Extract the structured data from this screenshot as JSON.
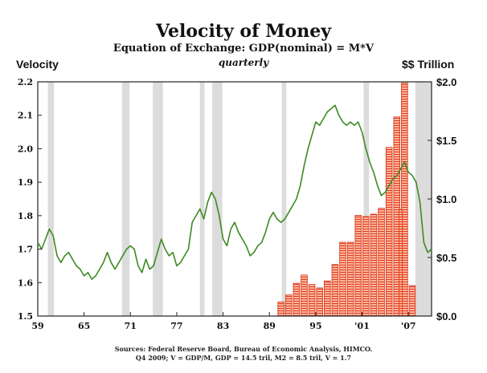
{
  "chart_data": {
    "type": "bar+line",
    "title": "Velocity of Money",
    "subtitle": "Equation of Exchange: GDP(nominal) = M*V",
    "frequency": "quarterly",
    "left_axis": {
      "label": "Velocity",
      "ylim": [
        1.5,
        2.2
      ],
      "ticks": [
        "1.5",
        "1.6",
        "1.7",
        "1.8",
        "1.9",
        "2.0",
        "2.1",
        "2.2"
      ],
      "tick_values": [
        1.5,
        1.6,
        1.7,
        1.8,
        1.9,
        2.0,
        2.1,
        2.2
      ]
    },
    "right_axis": {
      "label": "$$ Trillion",
      "ylim": [
        0,
        2.0
      ],
      "ticks": [
        "$0.0",
        "$0.5",
        "$1.0",
        "$1.5",
        "$2.0"
      ],
      "tick_values": [
        0,
        0.5,
        1.0,
        1.5,
        2.0
      ]
    },
    "x_axis": {
      "xlim": [
        1959,
        2010
      ],
      "ticks": [
        "59",
        "65",
        "71",
        "77",
        "83",
        "89",
        "95",
        "'01",
        "'07"
      ],
      "tick_values": [
        1959,
        1965,
        1971,
        1977,
        1983,
        1989,
        1995,
        2001,
        2007
      ]
    },
    "recessions": [
      [
        1960.3,
        1961.1
      ],
      [
        1969.9,
        1970.9
      ],
      [
        1973.9,
        1975.2
      ],
      [
        1980.0,
        1980.6
      ],
      [
        1981.6,
        1982.9
      ],
      [
        1990.6,
        1991.2
      ],
      [
        2001.2,
        2001.9
      ],
      [
        2007.9,
        2010.0
      ]
    ],
    "series": [
      {
        "name": "Velocity",
        "type": "line",
        "axis": "left",
        "color": "#3d8a22",
        "points": [
          [
            1959.0,
            1.72
          ],
          [
            1959.5,
            1.7
          ],
          [
            1960.0,
            1.73
          ],
          [
            1960.5,
            1.76
          ],
          [
            1961.0,
            1.74
          ],
          [
            1961.5,
            1.68
          ],
          [
            1962.0,
            1.66
          ],
          [
            1962.5,
            1.68
          ],
          [
            1963.0,
            1.69
          ],
          [
            1963.5,
            1.67
          ],
          [
            1964.0,
            1.65
          ],
          [
            1964.5,
            1.64
          ],
          [
            1965.0,
            1.62
          ],
          [
            1965.5,
            1.63
          ],
          [
            1966.0,
            1.61
          ],
          [
            1966.5,
            1.62
          ],
          [
            1967.0,
            1.64
          ],
          [
            1967.5,
            1.66
          ],
          [
            1968.0,
            1.69
          ],
          [
            1968.5,
            1.66
          ],
          [
            1969.0,
            1.64
          ],
          [
            1969.5,
            1.66
          ],
          [
            1970.0,
            1.68
          ],
          [
            1970.5,
            1.7
          ],
          [
            1971.0,
            1.71
          ],
          [
            1971.5,
            1.7
          ],
          [
            1972.0,
            1.65
          ],
          [
            1972.5,
            1.63
          ],
          [
            1973.0,
            1.67
          ],
          [
            1973.5,
            1.64
          ],
          [
            1974.0,
            1.65
          ],
          [
            1974.5,
            1.69
          ],
          [
            1975.0,
            1.73
          ],
          [
            1975.5,
            1.7
          ],
          [
            1976.0,
            1.68
          ],
          [
            1976.5,
            1.69
          ],
          [
            1977.0,
            1.65
          ],
          [
            1977.5,
            1.66
          ],
          [
            1978.0,
            1.68
          ],
          [
            1978.5,
            1.7
          ],
          [
            1979.0,
            1.78
          ],
          [
            1979.5,
            1.8
          ],
          [
            1980.0,
            1.82
          ],
          [
            1980.5,
            1.79
          ],
          [
            1981.0,
            1.84
          ],
          [
            1981.5,
            1.87
          ],
          [
            1982.0,
            1.85
          ],
          [
            1982.5,
            1.8
          ],
          [
            1983.0,
            1.73
          ],
          [
            1983.5,
            1.71
          ],
          [
            1984.0,
            1.76
          ],
          [
            1984.5,
            1.78
          ],
          [
            1985.0,
            1.75
          ],
          [
            1985.5,
            1.73
          ],
          [
            1986.0,
            1.71
          ],
          [
            1986.5,
            1.68
          ],
          [
            1987.0,
            1.69
          ],
          [
            1987.5,
            1.71
          ],
          [
            1988.0,
            1.72
          ],
          [
            1988.5,
            1.75
          ],
          [
            1989.0,
            1.79
          ],
          [
            1989.5,
            1.81
          ],
          [
            1990.0,
            1.79
          ],
          [
            1990.5,
            1.78
          ],
          [
            1991.0,
            1.79
          ],
          [
            1991.5,
            1.81
          ],
          [
            1992.0,
            1.83
          ],
          [
            1992.5,
            1.85
          ],
          [
            1993.0,
            1.89
          ],
          [
            1993.5,
            1.95
          ],
          [
            1994.0,
            2.0
          ],
          [
            1994.5,
            2.04
          ],
          [
            1995.0,
            2.08
          ],
          [
            1995.5,
            2.07
          ],
          [
            1996.0,
            2.09
          ],
          [
            1996.5,
            2.11
          ],
          [
            1997.0,
            2.12
          ],
          [
            1997.5,
            2.13
          ],
          [
            1998.0,
            2.1
          ],
          [
            1998.5,
            2.08
          ],
          [
            1999.0,
            2.07
          ],
          [
            1999.5,
            2.08
          ],
          [
            2000.0,
            2.07
          ],
          [
            2000.5,
            2.08
          ],
          [
            2001.0,
            2.05
          ],
          [
            2001.5,
            2.0
          ],
          [
            2002.0,
            1.96
          ],
          [
            2002.5,
            1.93
          ],
          [
            2003.0,
            1.89
          ],
          [
            2003.5,
            1.86
          ],
          [
            2004.0,
            1.87
          ],
          [
            2004.5,
            1.89
          ],
          [
            2005.0,
            1.91
          ],
          [
            2005.5,
            1.92
          ],
          [
            2006.0,
            1.94
          ],
          [
            2006.5,
            1.96
          ],
          [
            2007.0,
            1.93
          ],
          [
            2007.5,
            1.92
          ],
          [
            2008.0,
            1.9
          ],
          [
            2008.5,
            1.84
          ],
          [
            2009.0,
            1.72
          ],
          [
            2009.5,
            1.69
          ],
          [
            2010.0,
            1.7
          ]
        ]
      },
      {
        "name": "$$ Trillion",
        "type": "bar",
        "axis": "right",
        "color": "#ff9a7a",
        "hatch_color": "#cc2a10",
        "x": [
          1990.5,
          1991.5,
          1992.5,
          1993.5,
          1994.5,
          1995.5,
          1996.5,
          1997.5,
          1998.5,
          1999.5,
          2000.5,
          2001.5,
          2002.5,
          2003.5,
          2004.5,
          2005.5,
          2006.5,
          2007.5
        ],
        "values": [
          0.12,
          0.18,
          0.28,
          0.35,
          0.27,
          0.24,
          0.3,
          0.44,
          0.63,
          0.63,
          0.86,
          0.85,
          0.87,
          0.92,
          1.44,
          1.7,
          1.99,
          0.26
        ]
      }
    ],
    "extra_bars": {
      "x": [
        2006.0
      ],
      "values": [
        0.91
      ]
    }
  },
  "source_line_1": "Sources: Federal Reserve Board, Bureau of Economic Analysis, HIMCO.",
  "source_line_2": "Q4 2009; V = GDP/M, GDP = 14.5 tril, M2 = 8.5 tril, V = 1.7"
}
